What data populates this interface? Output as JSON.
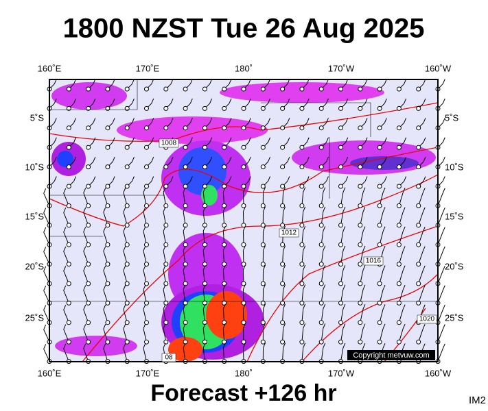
{
  "header": {
    "title": "1800 NZST Tue 26 Aug 2025"
  },
  "map": {
    "lon_labels": [
      "160˚E",
      "170˚E",
      "180˚",
      "170˚W",
      "160˚W"
    ],
    "lat_labels": [
      "5˚S",
      "10˚S",
      "15˚S",
      "20˚S",
      "25˚S"
    ],
    "isobar_labels": [
      "1008",
      "1012",
      "1016",
      "1020",
      "08"
    ],
    "copyright": "Copyright metvuw.com"
  },
  "footer": {
    "forecast": "Forecast +126 hr",
    "code": "IM2"
  }
}
